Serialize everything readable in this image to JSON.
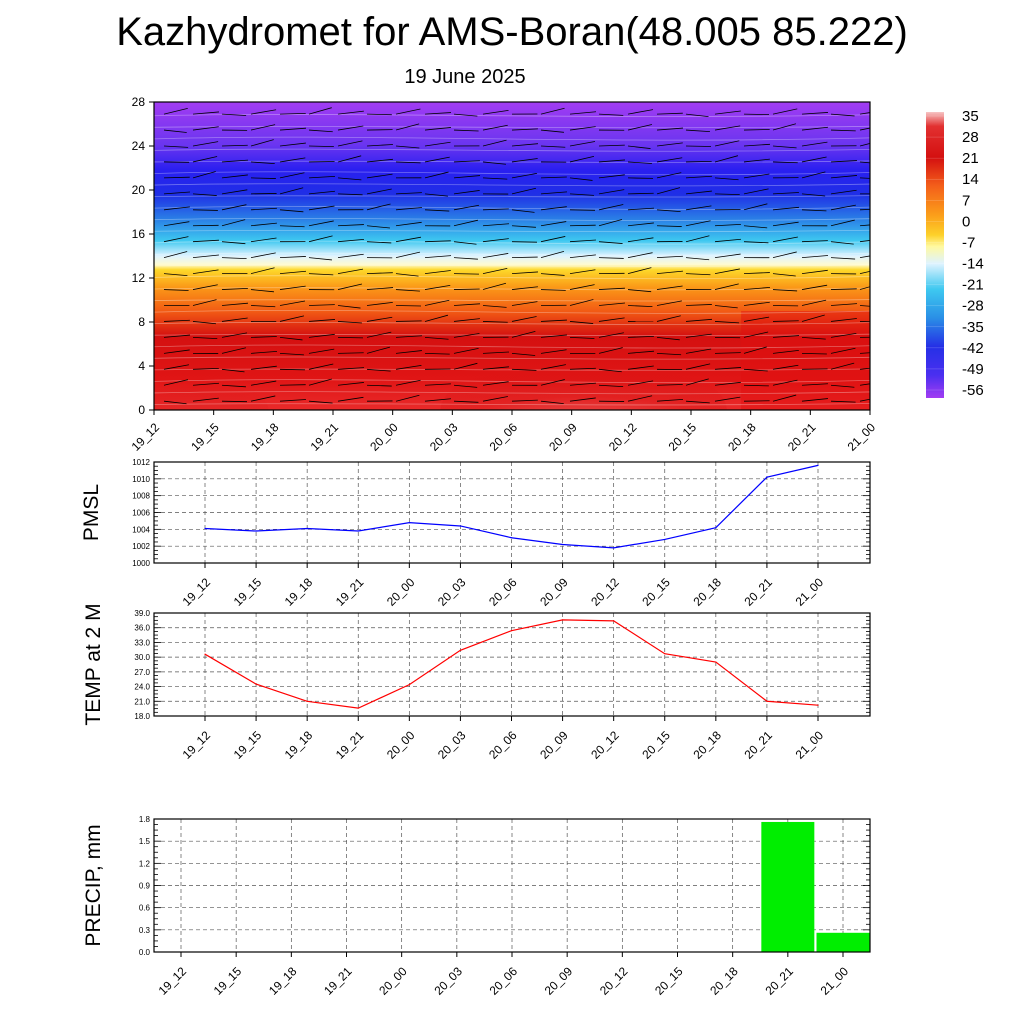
{
  "header": {
    "title": "Kazhydromet for AMS-Boran(48.005 85.222)",
    "subtitle": "19 June 2025"
  },
  "chart_data": [
    {
      "type": "heatmap",
      "title": "",
      "xlabel": "",
      "ylabel": "",
      "x": [
        "19_12",
        "19_15",
        "19_18",
        "19_21",
        "20_00",
        "20_03",
        "20_06",
        "20_09",
        "20_12",
        "20_15",
        "20_18",
        "20_21",
        "21_00"
      ],
      "y_ticks": [
        "0",
        "4",
        "8",
        "12",
        "16",
        "20",
        "24",
        "28"
      ],
      "ylim": [
        0,
        28
      ],
      "colorbar_ticks": [
        "35",
        "28",
        "21",
        "14",
        "7",
        "0",
        "-7",
        "-14",
        "-21",
        "-28",
        "-35",
        "-42",
        "-49",
        "-56"
      ],
      "colorbar_colors": [
        "#f7bcbc",
        "#d41010",
        "#e52020",
        "#f4601a",
        "#fb9e1a",
        "#fdd12a",
        "#fff9a0",
        "#dff3ff",
        "#3ec8f0",
        "#2a8fe6",
        "#2a50e0",
        "#2530e6",
        "#6a35f0",
        "#a23cf2"
      ],
      "field": {
        "description_levels": [
          0,
          4,
          8,
          12,
          13.2,
          16,
          20,
          24,
          28
        ],
        "grid_lines": true,
        "wind_barbs": true
      }
    },
    {
      "type": "line",
      "ylabel": "PMSL",
      "xlabel": "",
      "title": "",
      "x": [
        "19_12",
        "19_15",
        "19_18",
        "19_21",
        "20_00",
        "20_03",
        "20_06",
        "20_09",
        "20_12",
        "20_15",
        "20_18",
        "20_21",
        "21_00"
      ],
      "y_ticks": [
        "1000",
        "1002",
        "1004",
        "1006",
        "1008",
        "1010",
        "1012"
      ],
      "ylim": [
        1000,
        1012
      ],
      "series": [
        {
          "values": [
            1004.1,
            1003.8,
            1004.1,
            1003.8,
            1004.8,
            1004.4,
            1003.0,
            1002.2,
            1001.8,
            1002.8,
            1004.2,
            1010.2,
            1011.6
          ],
          "color": "#0000ff"
        }
      ],
      "grid": true
    },
    {
      "type": "line",
      "ylabel": "TEMP at 2 M",
      "xlabel": "",
      "title": "",
      "x": [
        "19_12",
        "19_15",
        "19_18",
        "19_21",
        "20_00",
        "20_03",
        "20_06",
        "20_09",
        "20_12",
        "20_15",
        "20_18",
        "20_21",
        "21_00"
      ],
      "y_ticks": [
        "18.0",
        "21.0",
        "24.0",
        "27.0",
        "30.0",
        "33.0",
        "36.0",
        "39.0"
      ],
      "ylim": [
        18,
        39
      ],
      "series": [
        {
          "values": [
            30.6,
            24.5,
            21.0,
            19.6,
            24.4,
            31.4,
            35.4,
            37.6,
            37.4,
            30.7,
            29.0,
            21.0,
            20.2
          ],
          "color": "#ff0000"
        }
      ],
      "grid": true
    },
    {
      "type": "bar",
      "ylabel": "PRECIP, mm",
      "xlabel": "",
      "title": "",
      "categories": [
        "19_12",
        "19_15",
        "19_18",
        "19_21",
        "20_00",
        "20_03",
        "20_06",
        "20_09",
        "20_12",
        "20_15",
        "20_18",
        "20_21",
        "21_00"
      ],
      "y_ticks": [
        "0.0",
        "0.3",
        "0.6",
        "0.9",
        "1.2",
        "1.5",
        "1.8"
      ],
      "ylim": [
        0,
        1.8
      ],
      "values": [
        0,
        0,
        0,
        0,
        0,
        0,
        0,
        0,
        0,
        0,
        0,
        1.76,
        0.26
      ],
      "color": "#00ee00",
      "grid": true
    }
  ]
}
